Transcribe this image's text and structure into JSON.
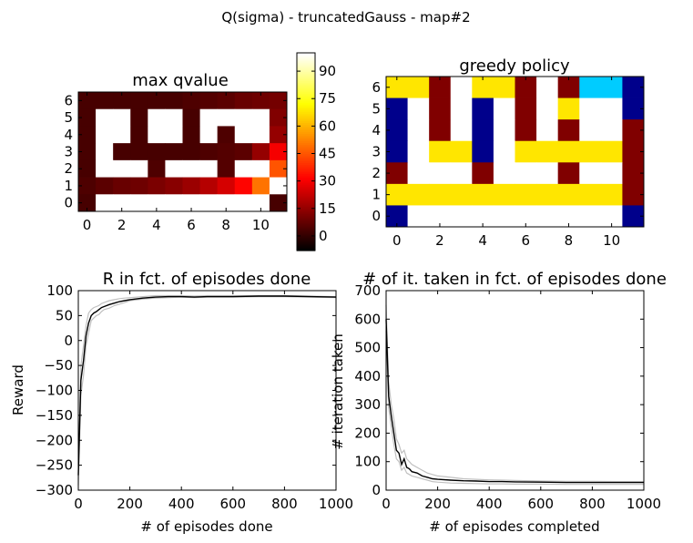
{
  "figure": {
    "suptitle": "Q(sigma) - truncatedGauss - map#2"
  },
  "chart_data": [
    {
      "type": "heatmap",
      "title": "max qvalue",
      "xlabel": "",
      "ylabel": "",
      "x_ticks": [
        0,
        2,
        4,
        6,
        8,
        10
      ],
      "y_ticks": [
        0,
        1,
        2,
        3,
        4,
        5,
        6
      ],
      "xlim": [
        -0.5,
        11.5
      ],
      "ylim": [
        -0.5,
        6.5
      ],
      "colormap": "hot",
      "colorbar": {
        "min": -8,
        "max": 100,
        "ticks": [
          0,
          15,
          30,
          45,
          60,
          75,
          90
        ]
      },
      "rows_top_to_bottom": [
        [
          3,
          3,
          3,
          3,
          3,
          3,
          4,
          5,
          6,
          8,
          9,
          10
        ],
        [
          3,
          null,
          null,
          3,
          null,
          null,
          3,
          null,
          null,
          null,
          null,
          12
        ],
        [
          3,
          null,
          null,
          3,
          null,
          null,
          3,
          null,
          4,
          null,
          null,
          15
        ],
        [
          3,
          null,
          3,
          3,
          3,
          3,
          3,
          4,
          5,
          6,
          15,
          30
        ],
        [
          3,
          null,
          null,
          null,
          4,
          null,
          null,
          null,
          5,
          null,
          null,
          45
        ],
        [
          4,
          6,
          8,
          9,
          11,
          13,
          16,
          20,
          25,
          32,
          50,
          100
        ],
        [
          3,
          null,
          null,
          null,
          null,
          null,
          null,
          null,
          null,
          null,
          null,
          3
        ]
      ]
    },
    {
      "type": "heatmap",
      "title": "greedy policy",
      "xlabel": "",
      "ylabel": "",
      "x_ticks": [
        0,
        2,
        4,
        6,
        8,
        10
      ],
      "y_ticks": [
        0,
        1,
        2,
        3,
        4,
        5,
        6
      ],
      "xlim": [
        -0.5,
        11.5
      ],
      "ylim": [
        -0.5,
        6.5
      ],
      "colors": {
        "navy": "#00008b",
        "yellow": "#ffe600",
        "maroon": "#800000",
        "cyan": "#00ccff",
        "white": "#ffffff"
      },
      "rows_top_to_bottom": [
        [
          "yellow",
          "yellow",
          "maroon",
          "white",
          "yellow",
          "yellow",
          "maroon",
          "white",
          "maroon",
          "cyan",
          "cyan",
          "navy"
        ],
        [
          "navy",
          "white",
          "maroon",
          "white",
          "navy",
          "white",
          "maroon",
          "white",
          "yellow",
          "white",
          "white",
          "navy"
        ],
        [
          "navy",
          "white",
          "maroon",
          "white",
          "navy",
          "white",
          "maroon",
          "white",
          "maroon",
          "white",
          "white",
          "maroon"
        ],
        [
          "navy",
          "white",
          "yellow",
          "yellow",
          "navy",
          "white",
          "yellow",
          "yellow",
          "yellow",
          "yellow",
          "yellow",
          "maroon"
        ],
        [
          "maroon",
          "white",
          "white",
          "white",
          "maroon",
          "white",
          "white",
          "white",
          "maroon",
          "white",
          "white",
          "maroon"
        ],
        [
          "yellow",
          "yellow",
          "yellow",
          "yellow",
          "yellow",
          "yellow",
          "yellow",
          "yellow",
          "yellow",
          "yellow",
          "yellow",
          "maroon"
        ],
        [
          "navy",
          "white",
          "white",
          "white",
          "white",
          "white",
          "white",
          "white",
          "white",
          "white",
          "white",
          "navy"
        ]
      ]
    },
    {
      "type": "line",
      "title": "R in fct. of episodes done",
      "xlabel": "# of episodes done",
      "ylabel": "Reward",
      "xlim": [
        0,
        1000
      ],
      "ylim": [
        -300,
        100
      ],
      "x_ticks": [
        0,
        200,
        400,
        600,
        800,
        1000
      ],
      "y_ticks": [
        100,
        50,
        0,
        -50,
        -100,
        -150,
        -200,
        -250,
        -300
      ],
      "series": [
        {
          "color": "#000000",
          "x": [
            0,
            10,
            20,
            30,
            40,
            50,
            60,
            70,
            80,
            90,
            100,
            120,
            140,
            160,
            180,
            200,
            250,
            300,
            350,
            400,
            450,
            500,
            600,
            700,
            800,
            900,
            1000
          ],
          "y": [
            -270,
            -80,
            -40,
            10,
            35,
            50,
            55,
            58,
            62,
            66,
            68,
            72,
            75,
            78,
            80,
            82,
            85,
            87,
            88,
            88,
            87,
            88,
            88,
            89,
            89,
            88,
            87
          ]
        },
        {
          "color": "#c0c0c0",
          "x": [
            0,
            10,
            20,
            30,
            40,
            50,
            60,
            70,
            80,
            90,
            100,
            120,
            140,
            160,
            180,
            200,
            250,
            300,
            350,
            400,
            450,
            500,
            600,
            700,
            800,
            900,
            1000
          ],
          "y": [
            -290,
            -110,
            -70,
            -10,
            15,
            40,
            45,
            50,
            52,
            58,
            62,
            65,
            70,
            73,
            76,
            80,
            83,
            85,
            86,
            87,
            86,
            87,
            87,
            88,
            88,
            87,
            86
          ]
        },
        {
          "color": "#c0c0c0",
          "x": [
            0,
            10,
            20,
            30,
            40,
            50,
            60,
            70,
            80,
            90,
            100,
            120,
            140,
            160,
            180,
            200,
            250,
            300,
            350,
            400,
            450,
            500,
            600,
            700,
            800,
            900,
            1000
          ],
          "y": [
            -250,
            -50,
            -10,
            30,
            55,
            62,
            66,
            68,
            70,
            74,
            76,
            80,
            82,
            84,
            85,
            86,
            88,
            90,
            90,
            90,
            89,
            90,
            90,
            90,
            90,
            89,
            88
          ]
        }
      ]
    },
    {
      "type": "line",
      "title": "# of it. taken in fct. of episodes done",
      "xlabel": "# of episodes completed",
      "ylabel": "# iteration taken",
      "xlim": [
        0,
        1000
      ],
      "ylim": [
        0,
        700
      ],
      "x_ticks": [
        0,
        200,
        400,
        600,
        800,
        1000
      ],
      "y_ticks": [
        700,
        600,
        500,
        400,
        300,
        200,
        100,
        0
      ],
      "series": [
        {
          "color": "#000000",
          "x": [
            0,
            10,
            20,
            30,
            40,
            50,
            60,
            70,
            80,
            90,
            100,
            120,
            140,
            160,
            180,
            200,
            250,
            300,
            350,
            400,
            450,
            500,
            600,
            700,
            800,
            900,
            1000
          ],
          "y": [
            600,
            330,
            260,
            200,
            140,
            130,
            90,
            110,
            80,
            75,
            65,
            60,
            50,
            45,
            40,
            38,
            35,
            33,
            32,
            30,
            30,
            29,
            28,
            27,
            27,
            27,
            27
          ]
        },
        {
          "color": "#c0c0c0",
          "x": [
            0,
            10,
            20,
            30,
            40,
            50,
            60,
            70,
            80,
            90,
            100,
            120,
            140,
            160,
            180,
            200,
            250,
            300,
            350,
            400,
            450,
            500,
            600,
            700,
            800,
            900,
            1000
          ],
          "y": [
            650,
            380,
            300,
            250,
            180,
            160,
            130,
            140,
            110,
            100,
            90,
            80,
            70,
            60,
            55,
            50,
            45,
            40,
            38,
            36,
            35,
            34,
            32,
            31,
            31,
            30,
            30
          ]
        },
        {
          "color": "#c0c0c0",
          "x": [
            0,
            10,
            20,
            30,
            40,
            50,
            60,
            70,
            80,
            90,
            100,
            120,
            140,
            160,
            180,
            200,
            250,
            300,
            350,
            400,
            450,
            500,
            600,
            700,
            800,
            900,
            1000
          ],
          "y": [
            560,
            290,
            220,
            160,
            110,
            100,
            70,
            80,
            60,
            55,
            50,
            45,
            40,
            35,
            30,
            28,
            25,
            24,
            23,
            22,
            22,
            21,
            21,
            20,
            20,
            20,
            20
          ]
        }
      ]
    }
  ]
}
